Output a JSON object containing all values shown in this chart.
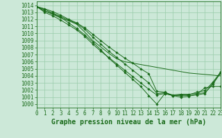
{
  "title": "Graphe pression niveau de la mer (hPa)",
  "xlim": [
    0,
    23
  ],
  "ylim": [
    999.5,
    1014.5
  ],
  "xticks": [
    0,
    1,
    2,
    3,
    4,
    5,
    6,
    7,
    8,
    9,
    10,
    11,
    12,
    13,
    14,
    15,
    16,
    17,
    18,
    19,
    20,
    21,
    22,
    23
  ],
  "yticks": [
    1000,
    1001,
    1002,
    1003,
    1004,
    1005,
    1006,
    1007,
    1008,
    1009,
    1010,
    1011,
    1012,
    1013,
    1014
  ],
  "bg_color": "#cce8d8",
  "grid_color": "#99ccaa",
  "line_color": "#1a6b1a",
  "lines": [
    [
      1013.8,
      1013.2,
      1012.7,
      1012.2,
      1011.8,
      1011.3,
      1010.2,
      1009.0,
      1008.1,
      1007.2,
      1006.4,
      1006.0,
      1005.8,
      1005.6,
      1005.4,
      1005.2,
      1005.0,
      1004.8,
      1004.6,
      1004.4,
      1004.3,
      1004.2,
      1004.1,
      1004.0
    ],
    [
      1013.8,
      1013.0,
      1012.5,
      1011.9,
      1011.2,
      1010.5,
      1009.6,
      1008.5,
      1007.5,
      1006.6,
      1005.7,
      1004.8,
      1003.9,
      1003.0,
      1002.1,
      1001.3,
      1001.5,
      1001.2,
      1001.0,
      1001.1,
      1001.4,
      1002.3,
      1002.5,
      1002.5
    ],
    [
      1013.8,
      1013.2,
      1012.8,
      1012.3,
      1011.5,
      1010.7,
      1009.8,
      1008.8,
      1007.7,
      1006.5,
      1005.5,
      1004.5,
      1003.5,
      1002.5,
      1001.2,
      1000.0,
      1001.5,
      1001.2,
      1001.3,
      1001.2,
      1001.3,
      1001.5,
      1003.0,
      1004.4
    ],
    [
      1013.8,
      1013.4,
      1012.9,
      1012.4,
      1011.9,
      1011.4,
      1010.6,
      1009.5,
      1008.5,
      1007.5,
      1006.6,
      1005.7,
      1004.8,
      1003.9,
      1003.0,
      1001.5,
      1001.6,
      1001.3,
      1001.4,
      1001.4,
      1001.5,
      1001.6,
      1002.8,
      1004.5
    ],
    [
      1013.8,
      1013.5,
      1013.1,
      1012.6,
      1012.0,
      1011.5,
      1010.8,
      1009.9,
      1009.0,
      1008.1,
      1007.3,
      1006.5,
      1005.8,
      1005.0,
      1004.3,
      1001.8,
      1001.7,
      1001.2,
      1001.2,
      1001.3,
      1001.7,
      1001.9,
      1003.1,
      1004.6
    ]
  ],
  "tick_fontsize": 5.5,
  "title_fontsize": 7.0
}
